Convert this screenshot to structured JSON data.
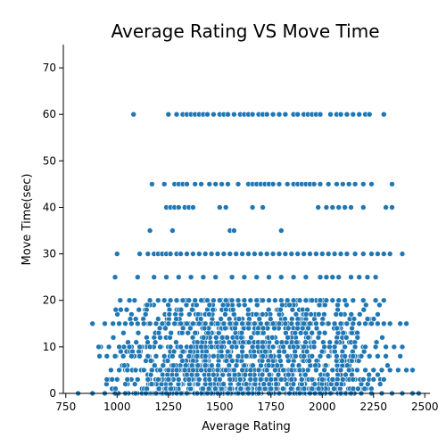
{
  "chart_data": {
    "type": "scatter",
    "title": "Average Rating VS Move Time",
    "xlabel": "Average Rating",
    "ylabel": "Move Time(sec)",
    "xlim": [
      738,
      2525
    ],
    "ylim": [
      0,
      75
    ],
    "xticks": [
      750,
      1000,
      1250,
      1500,
      1750,
      2000,
      2250,
      2500
    ],
    "yticks": [
      0,
      10,
      20,
      30,
      40,
      50,
      60,
      70
    ],
    "grid": false,
    "color": "#1f77b4",
    "bands": [
      {
        "y": 60,
        "xs": [
          1080,
          1250,
          1290,
          1320,
          1340,
          1360,
          1380,
          1400,
          1420,
          1440,
          1470,
          1500,
          1520,
          1540,
          1570,
          1600,
          1620,
          1640,
          1660,
          1690,
          1710,
          1730,
          1760,
          1790,
          1820,
          1860,
          1880,
          1910,
          1930,
          1950,
          1970,
          1990,
          2040,
          2070,
          2090,
          2120,
          2150,
          2180,
          2210,
          2230,
          2300
        ]
      },
      {
        "y": 45,
        "xs": [
          1170,
          1230,
          1280,
          1300,
          1320,
          1340,
          1380,
          1410,
          1450,
          1480,
          1510,
          1540,
          1590,
          1640,
          1660,
          1680,
          1700,
          1720,
          1740,
          1760,
          1790,
          1830,
          1860,
          1880,
          1900,
          1920,
          1940,
          1960,
          1990,
          2030,
          2070,
          2100,
          2130,
          2160,
          2200,
          2240,
          2340
        ]
      },
      {
        "y": 40,
        "xs": [
          1240,
          1260,
          1280,
          1300,
          1330,
          1350,
          1370,
          1500,
          1530,
          1660,
          1710,
          1980,
          2020,
          2050,
          2080,
          2110,
          2140,
          2200,
          2310,
          2340
        ]
      },
      {
        "y": 35,
        "xs": [
          1160,
          1270,
          1550,
          1570,
          1800
        ]
      },
      {
        "y": 30,
        "xs": [
          1000,
          1110,
          1150,
          1180,
          1200,
          1220,
          1240,
          1260,
          1290,
          1310,
          1340,
          1370,
          1400,
          1430,
          1460,
          1490,
          1520,
          1550,
          1580,
          1610,
          1640,
          1670,
          1700,
          1730,
          1760,
          1790,
          1820,
          1850,
          1880,
          1910,
          1940,
          1970,
          2000,
          2030,
          2060,
          2090,
          2120,
          2160,
          2200,
          2240,
          2270,
          2300,
          2330,
          2390
        ]
      },
      {
        "y": 25,
        "xs": [
          990,
          1100,
          1180,
          1240,
          1300,
          1360,
          1420,
          1480,
          1560,
          1620,
          1680,
          1740,
          1800,
          1860,
          1920,
          1990,
          2020,
          2050,
          2080,
          2140,
          2180,
          2220,
          2260
        ]
      },
      {
        "y": 20,
        "xs": [
          1060,
          1160,
          1200,
          1230,
          1260,
          1290,
          1320,
          1350,
          1380,
          1410,
          1440,
          1470,
          1500,
          1530,
          1560,
          1590,
          1620,
          1650,
          1680,
          1710,
          1740,
          1770,
          1800,
          1830,
          1860,
          1890,
          1920,
          1950,
          1990,
          2020,
          2050,
          2080,
          2110,
          2150,
          2200,
          2260,
          2300
        ]
      },
      {
        "y": 15,
        "xs": [
          880,
          940,
          980,
          1010,
          1040,
          1070,
          1100,
          1130,
          1160,
          1190,
          1220,
          1250,
          1280,
          1310,
          1340,
          1370,
          1400,
          1430,
          1460,
          1490,
          1520,
          1550,
          1580,
          1610,
          1640,
          1670,
          1700,
          1730,
          1760,
          1790,
          1820,
          1850,
          1880,
          1910,
          1940,
          1970,
          2000,
          2030,
          2060,
          2090,
          2120,
          2150,
          2180,
          2210,
          2240,
          2270,
          2300,
          2330,
          2380,
          2410
        ]
      },
      {
        "y": 10,
        "xs": [
          910,
          960,
          1010,
          1060,
          1110,
          1160,
          1210,
          1260,
          1310,
          1360,
          1410,
          1460,
          1510,
          1560,
          1610,
          1660,
          1710,
          1760,
          1810,
          1860,
          1910,
          1960,
          2010,
          2060,
          2110,
          2160,
          2210,
          2260,
          2310,
          2350,
          2390
        ]
      },
      {
        "y": 8,
        "xs": [
          950,
          990,
          1030,
          1070,
          1110,
          1150,
          1190,
          1230,
          1270,
          1310,
          1350,
          1390,
          1430,
          1470,
          1510,
          1550,
          1590,
          1630,
          1670,
          1710,
          1750,
          1790,
          1830,
          1870,
          1910,
          1950,
          1990,
          2030,
          2070,
          2110,
          2150,
          2190,
          2230,
          2270,
          2310,
          2380
        ]
      },
      {
        "y": 5,
        "xs": [
          970,
          1010,
          1050,
          1090,
          1130,
          1170,
          1210,
          1250,
          1290,
          1330,
          1370,
          1410,
          1450,
          1490,
          1530,
          1570,
          1610,
          1650,
          1690,
          1730,
          1770,
          1810,
          1850,
          1890,
          1930,
          1970,
          2010,
          2050,
          2090,
          2130,
          2170,
          2210,
          2250,
          2290,
          2330,
          2370,
          2410,
          2440
        ]
      },
      {
        "y": 3,
        "xs": [
          950,
          1000,
          1050,
          1100,
          1150,
          1200,
          1250,
          1300,
          1350,
          1400,
          1450,
          1500,
          1550,
          1600,
          1650,
          1700,
          1750,
          1800,
          1850,
          1900,
          1950,
          2000,
          2050,
          2100,
          2150,
          2200,
          2250,
          2300
        ]
      },
      {
        "y": 0,
        "xs": [
          810,
          880,
          940,
          990,
          1040,
          1090,
          1140,
          1190,
          1240,
          1290,
          1340,
          1390,
          1440,
          1490,
          1540,
          1590,
          1640,
          1690,
          1740,
          1790,
          1840,
          1890,
          1940,
          1990,
          2040,
          2090,
          2140,
          2190,
          2240,
          2290,
          2340,
          2390,
          2440,
          2470
        ]
      }
    ],
    "cluster": {
      "x_range": [
        900,
        2350
      ],
      "y_range": [
        0,
        20
      ],
      "count": 1300,
      "seed": 7
    }
  }
}
